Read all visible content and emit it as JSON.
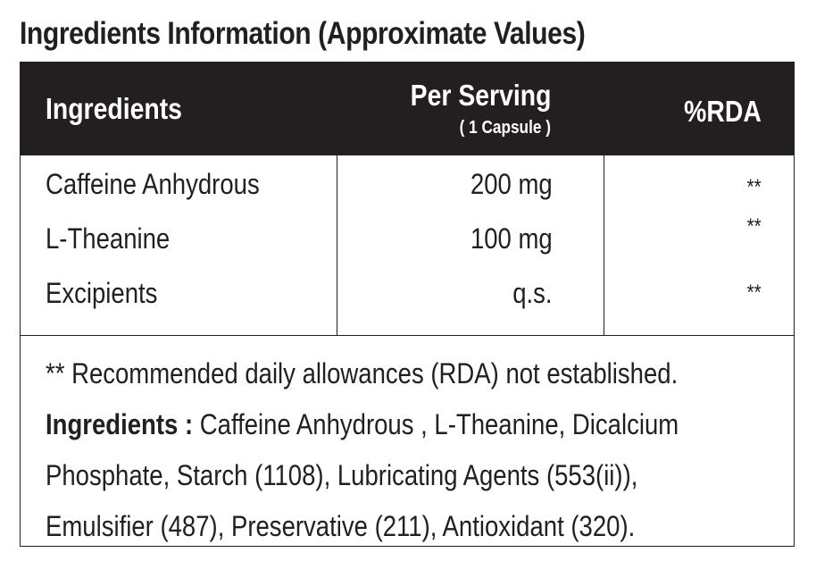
{
  "title": "Ingredients Information (Approximate Values)",
  "header": {
    "ingredients": "Ingredients",
    "per_serving": "Per Serving",
    "serving_unit": "( 1 Capsule )",
    "rda": "%RDA"
  },
  "rows": [
    {
      "name": "Caffeine Anhydrous",
      "amount": "200 mg",
      "rda": "**"
    },
    {
      "name": "L-Theanine",
      "amount": "100 mg",
      "rda": "**"
    },
    {
      "name": "Excipients",
      "amount": "q.s.",
      "rda": "**"
    }
  ],
  "footnote": "** Recommended daily allowances (RDA) not established.",
  "ingredients_label": "Ingredients :",
  "ingredients_list": " Caffeine  Anhydrous , L-Theanine, Dicalcium Phosphate, Starch (1108), Lubricating Agents (553(ii)), Emulsifier (487), Preservative (211), Antioxidant (320)."
}
